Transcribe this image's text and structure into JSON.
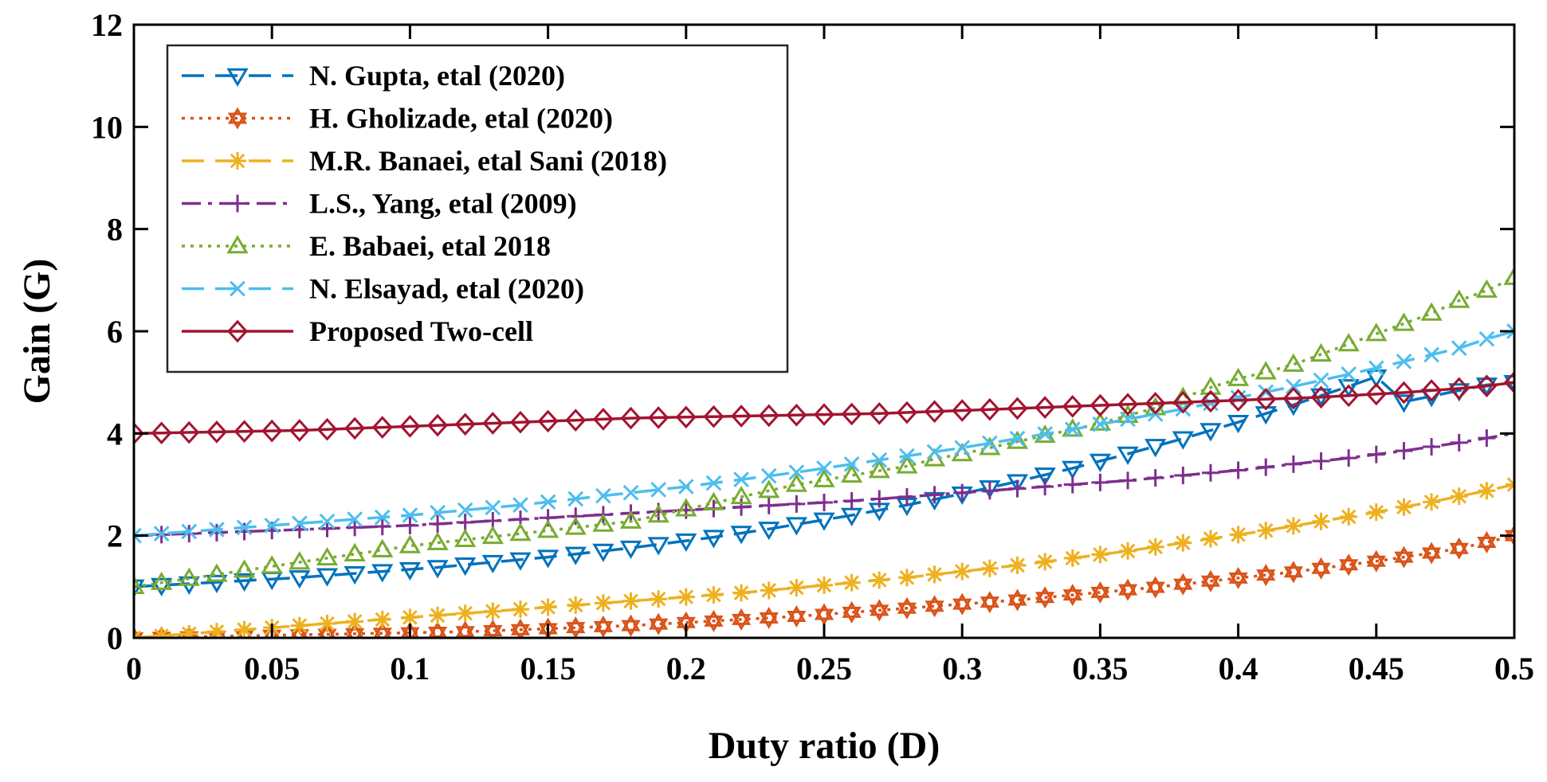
{
  "chart_data": {
    "type": "line",
    "xlabel": "Duty ratio (D)",
    "ylabel": "Gain (G)",
    "xlim": [
      0,
      0.5
    ],
    "ylim": [
      0,
      12
    ],
    "xticks": [
      0,
      0.05,
      0.1,
      0.15,
      0.2,
      0.25,
      0.3,
      0.35,
      0.4,
      0.45,
      0.5
    ],
    "xtick_labels": [
      "0",
      "0.05",
      "0.1",
      "0.15",
      "0.2",
      "0.25",
      "0.3",
      "0.35",
      "0.4",
      "0.45",
      "0.5"
    ],
    "yticks": [
      0,
      2,
      4,
      6,
      8,
      10,
      12
    ],
    "ytick_labels": [
      "0",
      "2",
      "4",
      "6",
      "8",
      "10",
      "12"
    ],
    "grid": false,
    "legend_position": "top-left",
    "x": [
      0,
      0.01,
      0.02,
      0.03,
      0.04,
      0.05,
      0.06,
      0.07,
      0.08,
      0.09,
      0.1,
      0.11,
      0.12,
      0.13,
      0.14,
      0.15,
      0.16,
      0.17,
      0.18,
      0.19,
      0.2,
      0.21,
      0.22,
      0.23,
      0.24,
      0.25,
      0.26,
      0.27,
      0.28,
      0.29,
      0.3,
      0.31,
      0.32,
      0.33,
      0.34,
      0.35,
      0.36,
      0.37,
      0.38,
      0.39,
      0.4,
      0.41,
      0.42,
      0.43,
      0.44,
      0.45,
      0.46,
      0.47,
      0.48,
      0.49,
      0.5
    ],
    "series": [
      {
        "name": "N. Gupta, etal (2020)",
        "color": "#0072BD",
        "line_style": "dashed",
        "marker": "triangle-down",
        "values": [
          1.0,
          1.03,
          1.06,
          1.09,
          1.12,
          1.15,
          1.18,
          1.22,
          1.26,
          1.3,
          1.34,
          1.38,
          1.43,
          1.48,
          1.53,
          1.58,
          1.64,
          1.7,
          1.76,
          1.83,
          1.9,
          1.97,
          2.05,
          2.13,
          2.22,
          2.31,
          2.4,
          2.5,
          2.6,
          2.71,
          2.82,
          2.94,
          3.06,
          3.19,
          3.32,
          3.46,
          3.6,
          3.75,
          3.9,
          4.06,
          4.22,
          4.39,
          4.56,
          4.74,
          4.92,
          5.11,
          4.62,
          4.73,
          4.84,
          4.95,
          5.0
        ]
      },
      {
        "name": "H. Gholizade, etal (2020)",
        "color": "#D95319",
        "line_style": "dotted",
        "marker": "hexagram",
        "values": [
          0.0,
          0.01,
          0.02,
          0.03,
          0.04,
          0.05,
          0.06,
          0.07,
          0.08,
          0.09,
          0.1,
          0.11,
          0.12,
          0.14,
          0.16,
          0.18,
          0.2,
          0.22,
          0.24,
          0.27,
          0.3,
          0.33,
          0.36,
          0.39,
          0.42,
          0.46,
          0.5,
          0.54,
          0.58,
          0.62,
          0.66,
          0.7,
          0.74,
          0.79,
          0.84,
          0.89,
          0.94,
          0.99,
          1.05,
          1.11,
          1.17,
          1.23,
          1.29,
          1.36,
          1.43,
          1.5,
          1.58,
          1.66,
          1.75,
          1.87,
          2.0
        ]
      },
      {
        "name": "M.R. Banaei, etal Sani (2018)",
        "color": "#EDB120",
        "line_style": "dashed",
        "marker": "asterisk",
        "values": [
          0.0,
          0.04,
          0.08,
          0.12,
          0.16,
          0.2,
          0.24,
          0.28,
          0.32,
          0.36,
          0.4,
          0.44,
          0.48,
          0.52,
          0.56,
          0.6,
          0.64,
          0.68,
          0.72,
          0.76,
          0.8,
          0.84,
          0.88,
          0.93,
          0.98,
          1.03,
          1.08,
          1.13,
          1.18,
          1.24,
          1.3,
          1.36,
          1.42,
          1.49,
          1.56,
          1.63,
          1.7,
          1.78,
          1.86,
          1.94,
          2.02,
          2.1,
          2.19,
          2.28,
          2.37,
          2.46,
          2.56,
          2.66,
          2.77,
          2.88,
          3.0
        ]
      },
      {
        "name": "L.S., Yang, etal (2009)",
        "color": "#7E2F8E",
        "line_style": "dashdot",
        "marker": "plus",
        "values": [
          2.0,
          2.02,
          2.04,
          2.06,
          2.08,
          2.1,
          2.12,
          2.14,
          2.16,
          2.18,
          2.2,
          2.23,
          2.26,
          2.29,
          2.32,
          2.35,
          2.38,
          2.41,
          2.44,
          2.47,
          2.5,
          2.53,
          2.56,
          2.59,
          2.62,
          2.65,
          2.68,
          2.72,
          2.76,
          2.8,
          2.84,
          2.88,
          2.92,
          2.96,
          3.0,
          3.04,
          3.08,
          3.13,
          3.18,
          3.23,
          3.28,
          3.34,
          3.4,
          3.46,
          3.52,
          3.59,
          3.66,
          3.74,
          3.82,
          3.91,
          4.0
        ]
      },
      {
        "name": "E. Babaei, etal 2018",
        "color": "#77AC30",
        "line_style": "dotted",
        "marker": "triangle-up",
        "values": [
          1.0,
          1.08,
          1.16,
          1.24,
          1.32,
          1.4,
          1.48,
          1.56,
          1.64,
          1.72,
          1.8,
          1.86,
          1.92,
          1.98,
          2.04,
          2.1,
          2.16,
          2.22,
          2.28,
          2.4,
          2.52,
          2.64,
          2.76,
          2.88,
          3.0,
          3.09,
          3.18,
          3.27,
          3.36,
          3.5,
          3.6,
          3.72,
          3.84,
          3.96,
          4.08,
          4.2,
          4.35,
          4.5,
          4.7,
          4.9,
          5.07,
          5.2,
          5.35,
          5.55,
          5.75,
          5.95,
          6.15,
          6.35,
          6.6,
          6.8,
          7.05
        ]
      },
      {
        "name": "N. Elsayad, etal (2020)",
        "color": "#4DBEEE",
        "line_style": "dashed",
        "marker": "x",
        "values": [
          2.0,
          2.04,
          2.08,
          2.12,
          2.16,
          2.2,
          2.24,
          2.28,
          2.32,
          2.36,
          2.4,
          2.45,
          2.5,
          2.55,
          2.6,
          2.66,
          2.72,
          2.78,
          2.84,
          2.9,
          2.96,
          3.03,
          3.1,
          3.17,
          3.24,
          3.32,
          3.4,
          3.48,
          3.56,
          3.64,
          3.72,
          3.81,
          3.9,
          3.99,
          4.08,
          4.18,
          4.28,
          4.38,
          4.48,
          4.59,
          4.7,
          4.81,
          4.92,
          5.04,
          5.16,
          5.28,
          5.41,
          5.54,
          5.67,
          5.85,
          6.0
        ]
      },
      {
        "name": "Proposed Two-cell",
        "color": "#A2142F",
        "line_style": "solid",
        "marker": "diamond",
        "values": [
          4.0,
          4.01,
          4.02,
          4.03,
          4.04,
          4.05,
          4.06,
          4.08,
          4.1,
          4.12,
          4.14,
          4.16,
          4.18,
          4.2,
          4.22,
          4.24,
          4.26,
          4.28,
          4.3,
          4.31,
          4.32,
          4.33,
          4.34,
          4.35,
          4.36,
          4.37,
          4.38,
          4.39,
          4.41,
          4.43,
          4.45,
          4.47,
          4.49,
          4.51,
          4.53,
          4.55,
          4.57,
          4.59,
          4.61,
          4.63,
          4.65,
          4.67,
          4.69,
          4.71,
          4.74,
          4.77,
          4.8,
          4.84,
          4.88,
          4.93,
          5.0
        ]
      }
    ]
  }
}
